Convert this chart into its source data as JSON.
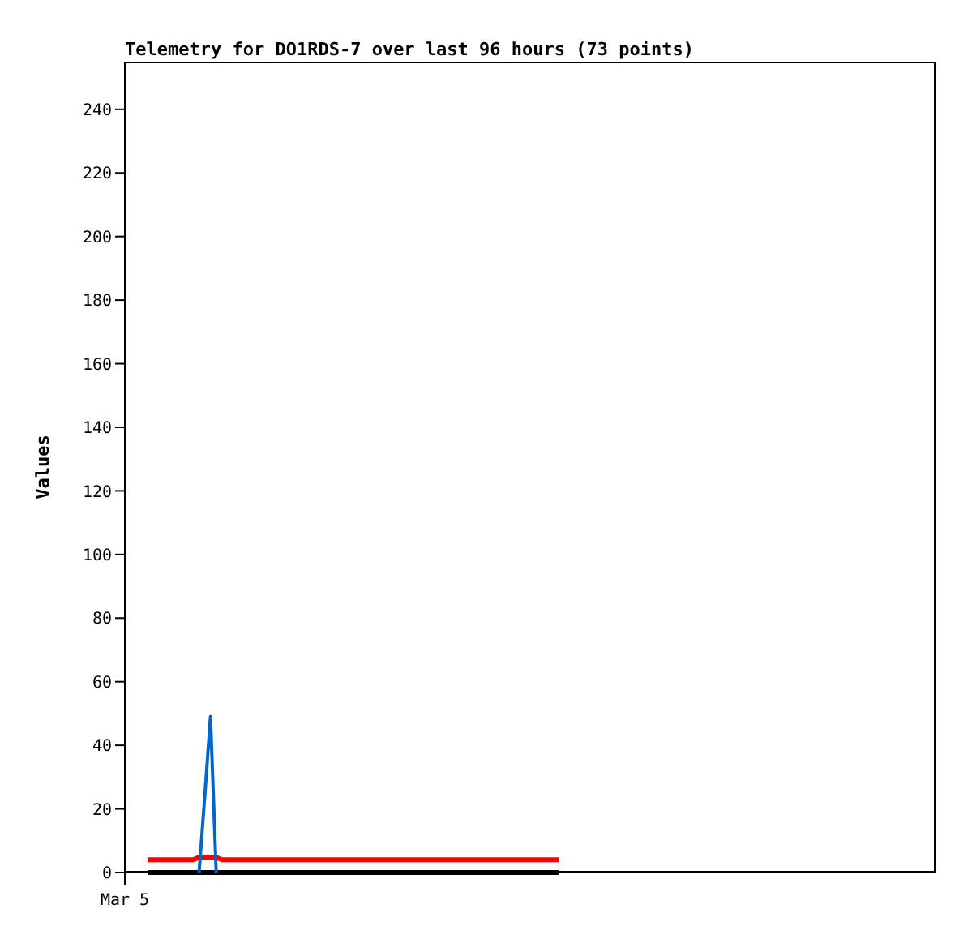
{
  "chart_data": {
    "type": "line",
    "title": "Telemetry for DO1RDS-7 over last 96 hours (73 points)",
    "ylabel": "Values",
    "categories": [
      "Mar 5",
      null,
      null,
      null,
      null,
      null,
      null,
      null,
      null,
      null,
      null,
      null,
      null,
      null,
      null,
      null,
      null,
      null,
      null,
      null,
      null,
      null,
      null,
      null,
      null,
      null,
      null,
      null,
      null,
      null,
      null,
      null,
      null,
      null,
      null,
      null,
      null,
      null,
      null,
      null,
      null,
      null,
      null,
      null,
      null,
      null,
      null,
      null,
      null,
      null,
      null,
      null,
      null,
      null,
      null,
      null,
      null,
      null,
      null,
      null,
      null,
      null,
      null,
      null,
      null,
      null,
      null,
      null,
      null,
      null,
      null,
      null,
      null,
      null,
      null,
      null,
      null,
      null,
      null,
      null,
      null,
      null,
      null,
      null,
      null,
      null,
      null,
      null,
      null,
      null,
      null,
      null,
      null,
      null,
      null,
      null,
      null,
      null,
      null,
      null,
      null,
      null,
      null,
      null,
      null,
      null,
      null,
      null,
      null,
      null,
      null,
      null,
      null,
      null,
      null,
      null,
      null,
      null,
      null,
      null,
      null,
      null,
      null,
      null,
      null,
      null,
      null,
      null,
      null,
      null,
      null,
      null,
      null,
      null,
      null,
      null,
      null,
      null,
      null,
      null,
      null,
      null,
      null
    ],
    "ylim": [
      0,
      255
    ],
    "yticks": [
      0,
      20,
      40,
      60,
      80,
      100,
      120,
      140,
      160,
      180,
      200,
      220,
      240
    ],
    "marker": "none",
    "line_style": "solid",
    "series": [
      {
        "color": "#000000",
        "values": [
          null,
          null,
          null,
          null,
          0,
          0,
          0,
          0,
          0,
          0,
          0,
          0,
          0,
          0,
          0,
          0,
          0,
          0,
          0,
          0,
          0,
          0,
          0,
          0,
          0,
          0,
          0,
          0,
          0,
          0,
          0,
          0,
          0,
          0,
          0,
          0,
          0,
          0,
          0,
          0,
          0,
          0,
          0,
          0,
          0,
          0,
          0,
          0,
          0,
          0,
          0,
          0,
          0,
          0,
          0,
          0,
          0,
          0,
          0,
          0,
          0,
          0,
          0,
          0,
          0,
          0,
          0,
          0,
          0,
          0,
          0,
          0,
          0,
          0,
          0,
          0,
          0,
          null,
          null,
          null,
          null,
          null,
          null,
          null,
          null,
          null,
          null,
          null,
          null,
          null,
          null,
          null,
          null,
          null,
          null,
          null,
          null,
          null,
          null,
          null,
          null,
          null,
          null,
          null,
          null,
          null,
          null,
          null,
          null,
          null,
          null,
          null,
          null,
          null,
          null,
          null,
          null,
          null,
          null,
          null,
          null,
          null,
          null,
          null,
          null,
          null,
          null,
          null,
          null,
          null,
          null,
          null,
          null,
          null,
          null,
          null,
          null,
          null,
          null,
          null,
          null,
          null,
          null
        ]
      },
      {
        "color": "#ff0000",
        "values": [
          null,
          null,
          null,
          null,
          4,
          4,
          4,
          4,
          4,
          4,
          4,
          4,
          4,
          4.8,
          4.8,
          4.8,
          4.8,
          4,
          4,
          4,
          4,
          4,
          4,
          4,
          4,
          4,
          4,
          4,
          4,
          4,
          4,
          4,
          4,
          4,
          4,
          4,
          4,
          4,
          4,
          4,
          4,
          4,
          4,
          4,
          4,
          4,
          4,
          4,
          4,
          4,
          4,
          4,
          4,
          4,
          4,
          4,
          4,
          4,
          4,
          4,
          4,
          4,
          4,
          4,
          4,
          4,
          4,
          4,
          4,
          4,
          4,
          4,
          4,
          4,
          4,
          4,
          4,
          null,
          null,
          null,
          null,
          null,
          null,
          null,
          null,
          null,
          null,
          null,
          null,
          null,
          null,
          null,
          null,
          null,
          null,
          null,
          null,
          null,
          null,
          null,
          null,
          null,
          null,
          null,
          null,
          null,
          null,
          null,
          null,
          null,
          null,
          null,
          null,
          null,
          null,
          null,
          null,
          null,
          null,
          null,
          null,
          null,
          null,
          null,
          null,
          null,
          null,
          null,
          null,
          null,
          null,
          null,
          null,
          null,
          null,
          null,
          null,
          null,
          null,
          null,
          null,
          null,
          null
        ]
      },
      {
        "color": "#0066cc",
        "values": [
          null,
          null,
          null,
          null,
          null,
          null,
          null,
          null,
          null,
          null,
          null,
          null,
          null,
          0,
          24,
          49,
          0,
          null,
          null,
          null,
          null,
          null,
          null,
          null,
          null,
          null,
          null,
          null,
          null,
          null,
          null,
          null,
          null,
          null,
          null,
          null,
          null,
          null,
          null,
          null,
          null,
          null,
          null,
          null,
          null,
          null,
          null,
          null,
          null,
          null,
          null,
          null,
          null,
          null,
          null,
          null,
          null,
          null,
          null,
          null,
          null,
          null,
          null,
          null,
          null,
          null,
          null,
          null,
          null,
          null,
          null,
          null,
          null,
          null,
          null,
          null,
          null,
          null,
          null,
          null,
          null,
          null,
          null,
          null,
          null,
          null,
          null,
          null,
          null,
          null,
          null,
          null,
          null,
          null,
          null,
          null,
          null,
          null,
          null,
          null,
          null,
          null,
          null,
          null,
          null,
          null,
          null,
          null,
          null,
          null,
          null,
          null,
          null,
          null,
          null,
          null,
          null,
          null,
          null,
          null,
          null,
          null,
          null,
          null,
          null,
          null,
          null,
          null,
          null,
          null,
          null,
          null,
          null,
          null,
          null,
          null,
          null,
          null,
          null,
          null,
          null,
          null,
          null
        ]
      }
    ]
  }
}
